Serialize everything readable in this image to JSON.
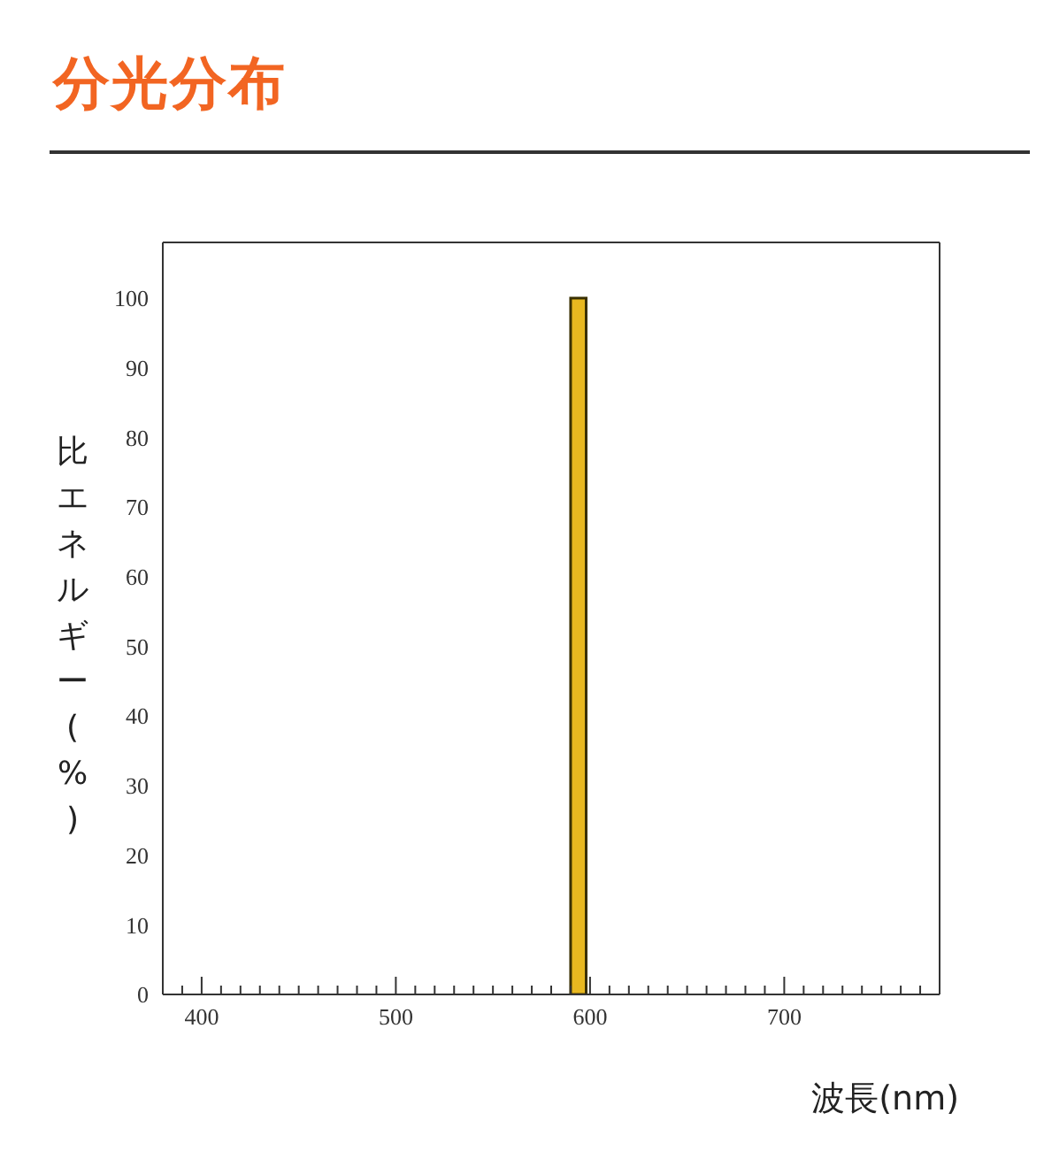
{
  "chart_data": {
    "type": "histogram",
    "title": "分光分布",
    "xlabel": "波長(nm)",
    "ylabel": "比エネルギー(%)",
    "bins": [
      590,
      598
    ],
    "values": [
      100
    ],
    "color": "#e8b820",
    "xlim": [
      380,
      780
    ],
    "xticks": [
      {
        "value": 390,
        "label": null
      },
      400,
      {
        "value": 410,
        "label": null
      },
      {
        "value": 420,
        "label": null
      },
      {
        "value": 430,
        "label": null
      },
      {
        "value": 440,
        "label": null
      },
      {
        "value": 450,
        "label": null
      },
      {
        "value": 460,
        "label": null
      },
      {
        "value": 470,
        "label": null
      },
      {
        "value": 480,
        "label": null
      },
      {
        "value": 490,
        "label": null
      },
      500,
      {
        "value": 510,
        "label": null
      },
      {
        "value": 520,
        "label": null
      },
      {
        "value": 530,
        "label": null
      },
      {
        "value": 540,
        "label": null
      },
      {
        "value": 550,
        "label": null
      },
      {
        "value": 560,
        "label": null
      },
      {
        "value": 570,
        "label": null
      },
      {
        "value": 580,
        "label": null
      },
      {
        "value": 590,
        "label": null
      },
      600,
      {
        "value": 610,
        "label": null
      },
      {
        "value": 620,
        "label": null
      },
      {
        "value": 630,
        "label": null
      },
      {
        "value": 640,
        "label": null
      },
      {
        "value": 650,
        "label": null
      },
      {
        "value": 660,
        "label": null
      },
      {
        "value": 670,
        "label": null
      },
      {
        "value": 680,
        "label": null
      },
      {
        "value": 690,
        "label": null
      },
      700,
      {
        "value": 710,
        "label": null
      },
      {
        "value": 720,
        "label": null
      },
      {
        "value": 730,
        "label": null
      },
      {
        "value": 740,
        "label": null
      },
      {
        "value": 750,
        "label": null
      },
      {
        "value": 760,
        "label": null
      },
      {
        "value": 770,
        "label": null
      }
    ],
    "ylim": [
      0,
      108
    ],
    "yticks": [
      0,
      10,
      20,
      30,
      40,
      50,
      60,
      70,
      80,
      90,
      100
    ]
  }
}
